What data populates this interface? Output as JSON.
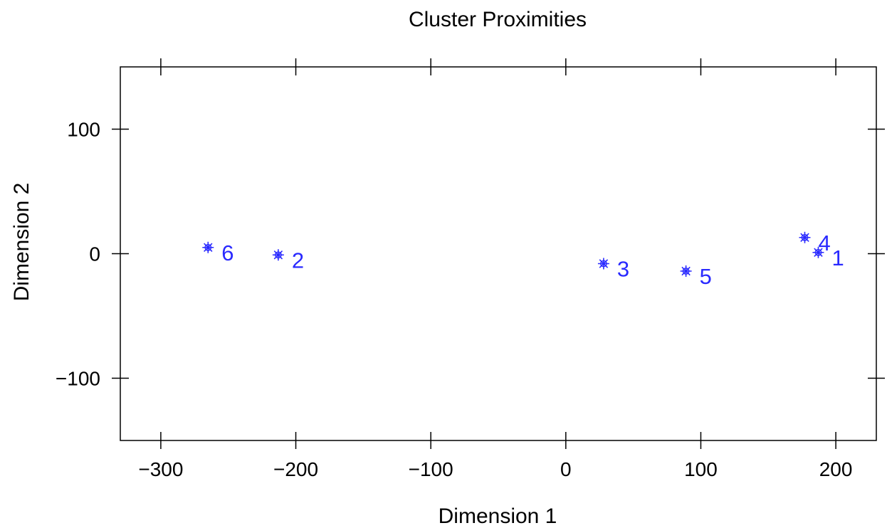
{
  "chart_data": {
    "type": "scatter",
    "title": "Cluster Proximities",
    "xlabel": "Dimension 1",
    "ylabel": "Dimension 2",
    "xlim": [
      -330,
      230
    ],
    "ylim": [
      -150,
      150
    ],
    "xticks": [
      -300,
      -200,
      -100,
      0,
      100,
      200
    ],
    "yticks": [
      -100,
      0,
      100
    ],
    "xtick_labels": [
      "−300",
      "−200",
      "−100",
      "0",
      "100",
      "200"
    ],
    "ytick_labels": [
      "−100",
      "0",
      "100"
    ],
    "marker_color": "#2a2aff",
    "points": [
      {
        "label": "1",
        "x": 187,
        "y": 1
      },
      {
        "label": "2",
        "x": -213,
        "y": -1
      },
      {
        "label": "3",
        "x": 28,
        "y": -8
      },
      {
        "label": "4",
        "x": 177,
        "y": 13
      },
      {
        "label": "5",
        "x": 89,
        "y": -14
      },
      {
        "label": "6",
        "x": -265,
        "y": 5
      }
    ]
  }
}
